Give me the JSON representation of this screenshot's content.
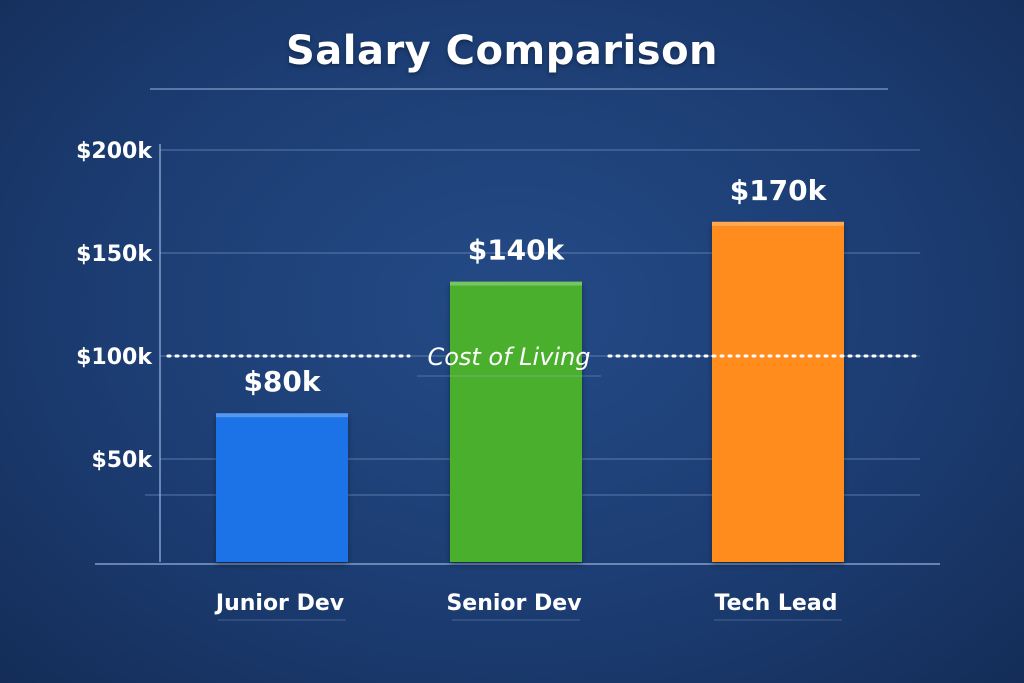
{
  "chart_data": {
    "type": "bar",
    "title": "Salary Comparison",
    "categories": [
      "Junior Dev",
      "Senior Dev",
      "Tech Lead"
    ],
    "values": [
      80,
      140,
      170
    ],
    "value_labels": [
      "$80k",
      "$140k",
      "$170k"
    ],
    "bar_colors": [
      "#1a73e8",
      "#4caf2f",
      "#ff8c1a"
    ],
    "ylim": [
      0,
      200
    ],
    "y_ticks": [
      50,
      100,
      150,
      200
    ],
    "y_tick_labels": [
      "$50k",
      "$100k",
      "$150k",
      "$200k"
    ],
    "reference_line": {
      "value": 100,
      "label": "Cost of Living",
      "style": "dotted"
    },
    "grid": true,
    "xlabel": "",
    "ylabel": ""
  }
}
